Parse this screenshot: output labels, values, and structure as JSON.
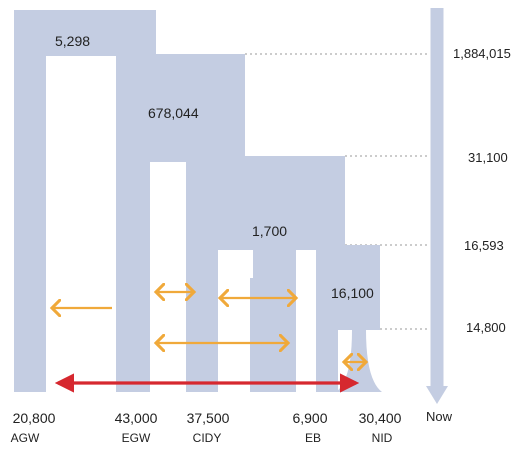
{
  "colors": {
    "tree": "#c4cde2",
    "orange_arrow": "#f0a93a",
    "red_arrow": "#d6282f",
    "dashed": "#999999"
  },
  "node_labels": {
    "root": "5,298",
    "egw_cidy": "678,044",
    "eb_nid": "1,700",
    "nid_split": "16,100"
  },
  "time_axis": {
    "label_now": "Now",
    "ticks": [
      "1,884,015",
      "31,100",
      "16,593",
      "14,800"
    ]
  },
  "populations": [
    {
      "size": "20,800",
      "code": "AGW"
    },
    {
      "size": "43,000",
      "code": "EGW"
    },
    {
      "size": "37,500",
      "code": "CIDY"
    },
    {
      "size": "6,900",
      "code": "EB"
    },
    {
      "size": "30,400",
      "code": "NID"
    }
  ]
}
